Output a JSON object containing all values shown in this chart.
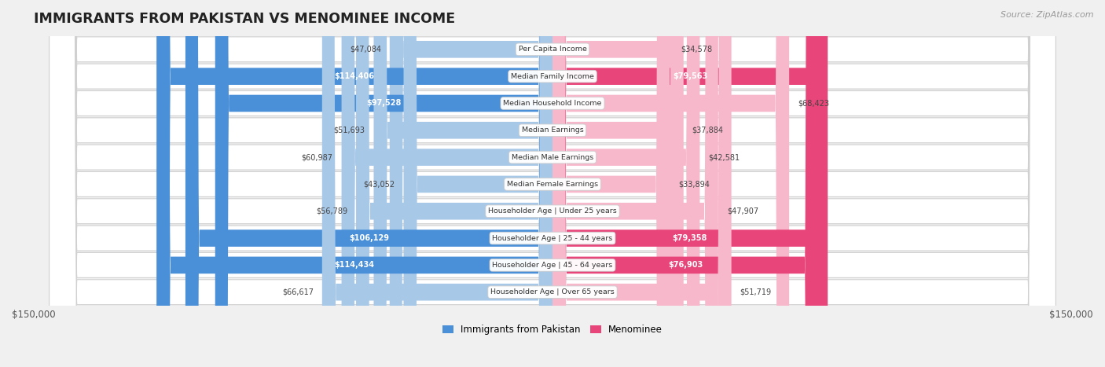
{
  "title": "IMMIGRANTS FROM PAKISTAN VS MENOMINEE INCOME",
  "source": "Source: ZipAtlas.com",
  "categories": [
    "Per Capita Income",
    "Median Family Income",
    "Median Household Income",
    "Median Earnings",
    "Median Male Earnings",
    "Median Female Earnings",
    "Householder Age | Under 25 years",
    "Householder Age | 25 - 44 years",
    "Householder Age | 45 - 64 years",
    "Householder Age | Over 65 years"
  ],
  "pakistan_values": [
    47084,
    114406,
    97528,
    51693,
    60987,
    43052,
    56789,
    106129,
    114434,
    66617
  ],
  "menominee_values": [
    34578,
    79563,
    68423,
    37884,
    42581,
    33894,
    47907,
    79358,
    76903,
    51719
  ],
  "pakistan_labels": [
    "$47,084",
    "$114,406",
    "$97,528",
    "$51,693",
    "$60,987",
    "$43,052",
    "$56,789",
    "$106,129",
    "$114,434",
    "$66,617"
  ],
  "menominee_labels": [
    "$34,578",
    "$79,563",
    "$68,423",
    "$37,884",
    "$42,581",
    "$33,894",
    "$47,907",
    "$79,358",
    "$76,903",
    "$51,719"
  ],
  "pakistan_color_light": "#a8c8e8",
  "pakistan_color_dark": "#4a90d9",
  "menominee_color_light": "#f7b8cc",
  "menominee_color_dark": "#e8457a",
  "max_value": 150000,
  "background_color": "#f0f0f0",
  "row_bg_color": "#ffffff",
  "legend_pakistan": "Immigrants from Pakistan",
  "legend_menominee": "Menominee",
  "pk_threshold": 70000,
  "mn_threshold": 70000
}
